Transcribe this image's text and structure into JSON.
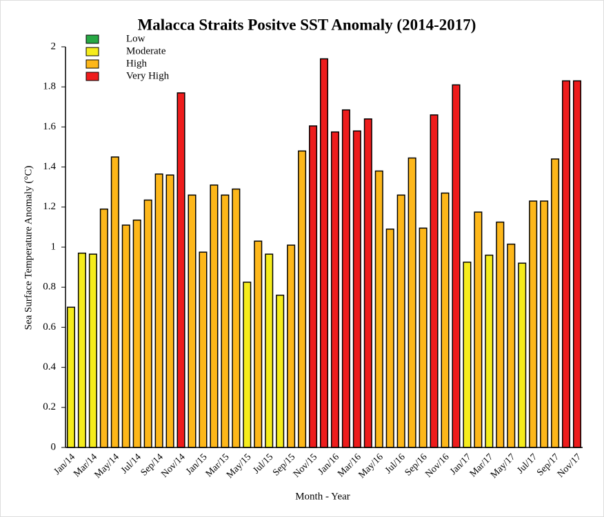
{
  "chart_data": {
    "type": "bar",
    "title": "Malacca Straits Positve SST Anomaly (2014-2017)",
    "xlabel": "Month - Year",
    "ylabel": "Sea Surface Temperature Anomaly (°C)",
    "legend": [
      {
        "name": "Low",
        "color": "#27a844"
      },
      {
        "name": "Moderate",
        "color": "#f5ec1c"
      },
      {
        "name": "High",
        "color": "#fdb71a"
      },
      {
        "name": "Very High",
        "color": "#ee1c1c"
      }
    ],
    "categories": [
      "Jan/14",
      null,
      "Mar/14",
      null,
      "May/14",
      null,
      "Jul/14",
      null,
      "Sep/14",
      null,
      "Nov/14",
      null,
      "Jan/15",
      null,
      "Mar/15",
      null,
      "May/15",
      null,
      "Jul/15",
      null,
      "Sep/15",
      null,
      "Nov/15",
      null,
      "Jan/16",
      null,
      "Mar/16",
      null,
      "May/16",
      null,
      "Jul/16",
      null,
      "Sep/16",
      null,
      "Nov/16",
      null,
      "Jan/17",
      null,
      "Mar/17",
      null,
      "May/17",
      null,
      "Jul/17",
      null,
      "Sep/17",
      null,
      "Nov/17"
    ],
    "values": [
      0.7,
      0.97,
      0.965,
      1.19,
      1.45,
      1.11,
      1.135,
      1.235,
      1.365,
      1.36,
      1.77,
      1.26,
      0.975,
      1.31,
      1.26,
      1.29,
      0.825,
      1.03,
      0.965,
      0.76,
      1.01,
      1.48,
      1.605,
      1.94,
      1.575,
      1.685,
      1.58,
      1.64,
      1.38,
      1.09,
      1.26,
      1.445,
      1.095,
      1.66,
      1.27,
      1.81,
      0.925,
      1.175,
      0.96,
      1.125,
      1.015,
      0.92,
      1.23,
      1.23,
      1.44,
      1.83,
      1.83
    ],
    "colors": [
      "#f5ec1c",
      "#f5ec1c",
      "#f5ec1c",
      "#fdb71a",
      "#fdb71a",
      "#fdb71a",
      "#fdb71a",
      "#fdb71a",
      "#fdb71a",
      "#fdb71a",
      "#ee1c1c",
      "#fdb71a",
      "#fdb71a",
      "#fdb71a",
      "#fdb71a",
      "#fdb71a",
      "#f5ec1c",
      "#fdb71a",
      "#f5ec1c",
      "#f5ec1c",
      "#fdb71a",
      "#fdb71a",
      "#ee1c1c",
      "#ee1c1c",
      "#ee1c1c",
      "#ee1c1c",
      "#ee1c1c",
      "#ee1c1c",
      "#fdb71a",
      "#fdb71a",
      "#fdb71a",
      "#fdb71a",
      "#fdb71a",
      "#ee1c1c",
      "#fdb71a",
      "#ee1c1c",
      "#f5ec1c",
      "#fdb71a",
      "#f5ec1c",
      "#fdb71a",
      "#fdb71a",
      "#f5ec1c",
      "#fdb71a",
      "#fdb71a",
      "#fdb71a",
      "#ee1c1c",
      "#ee1c1c"
    ],
    "ylim": [
      0,
      2
    ],
    "yticks": [
      0,
      0.2,
      0.4,
      0.6,
      0.8,
      1,
      1.2,
      1.4,
      1.6,
      1.8,
      2
    ],
    "grid": false
  }
}
